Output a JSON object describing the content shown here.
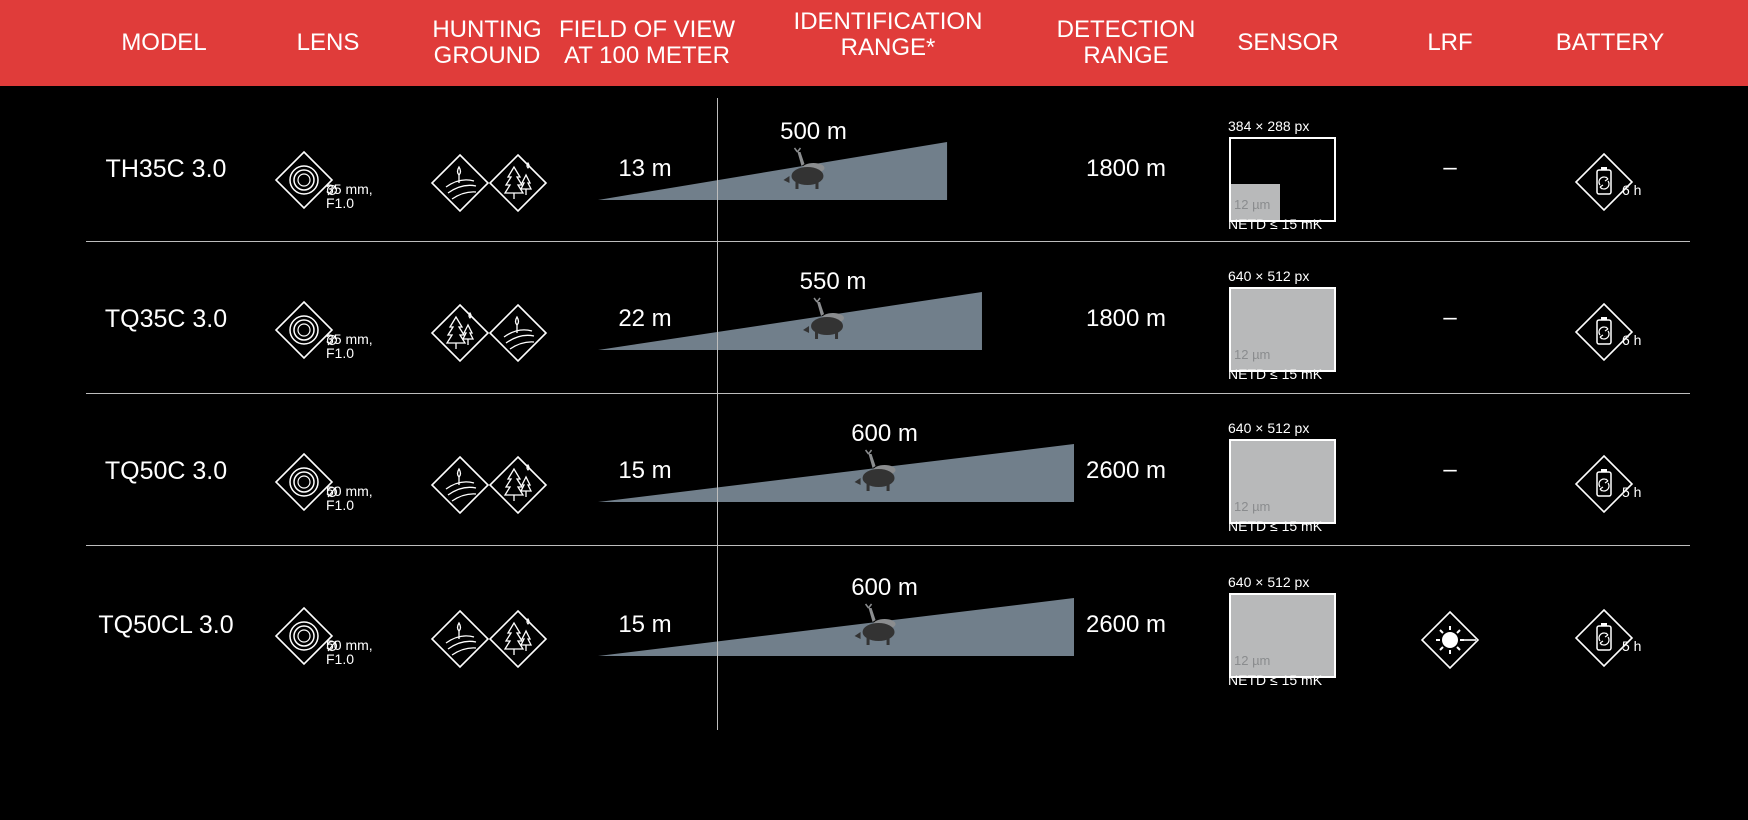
{
  "header": {
    "columns": [
      {
        "key": "model",
        "label": "MODEL"
      },
      {
        "key": "lens",
        "label": "LENS"
      },
      {
        "key": "hunting",
        "label": "HUNTING\nGROUND"
      },
      {
        "key": "fov",
        "label": "FIELD OF VIEW\nAT 100 METER"
      },
      {
        "key": "ident",
        "label": "IDENTIFICATION\nRANGE*"
      },
      {
        "key": "detect",
        "label": "DETECTION\nRANGE"
      },
      {
        "key": "sensor",
        "label": "SENSOR"
      },
      {
        "key": "lrf",
        "label": "LRF"
      },
      {
        "key": "battery",
        "label": "BATTERY"
      }
    ]
  },
  "colors": {
    "header_bg": "#e03c3a",
    "cone": "#717f8b",
    "sensor_fill": "#b8b9ba",
    "background": "#000000"
  },
  "rows": [
    {
      "model": "TH35C 3.0",
      "lens_line1": "35 mm,",
      "lens_line2": "F1.0",
      "hunting_icons": [
        "field-drop-icon",
        "forest-drop-icon"
      ],
      "fov": "13 m",
      "identification": "500 m",
      "detection": "1800 m",
      "sensor_resolution": "384 × 288 px",
      "sensor_pixel": "12 µm",
      "sensor_netd": "NETD ≤ 15 mK",
      "sensor_fill_fraction": 0.48,
      "lrf": "–",
      "lrf_icon": null,
      "battery": "6 h"
    },
    {
      "model": "TQ35C 3.0",
      "lens_line1": "35 mm,",
      "lens_line2": "F1.0",
      "hunting_icons": [
        "forest-drop-icon",
        "field-drop-icon"
      ],
      "fov": "22 m",
      "identification": "550 m",
      "detection": "1800 m",
      "sensor_resolution": "640 × 512 px",
      "sensor_pixel": "12 µm",
      "sensor_netd": "NETD ≤ 15 mK",
      "sensor_fill_fraction": 1.0,
      "lrf": "–",
      "lrf_icon": null,
      "battery": "6 h"
    },
    {
      "model": "TQ50C 3.0",
      "lens_line1": "50 mm,",
      "lens_line2": "F1.0",
      "hunting_icons": [
        "field-drop-icon",
        "forest-drop-icon"
      ],
      "fov": "15 m",
      "identification": "600 m",
      "detection": "2600 m",
      "sensor_resolution": "640 × 512 px",
      "sensor_pixel": "12 µm",
      "sensor_netd": "NETD ≤ 15 mK",
      "sensor_fill_fraction": 1.0,
      "lrf": "–",
      "lrf_icon": null,
      "battery": "5 h"
    },
    {
      "model": "TQ50CL 3.0",
      "lens_line1": "50 mm,",
      "lens_line2": "F1.0",
      "hunting_icons": [
        "field-drop-icon",
        "forest-drop-icon"
      ],
      "fov": "15 m",
      "identification": "600 m",
      "detection": "2600 m",
      "sensor_resolution": "640 × 512 px",
      "sensor_pixel": "12 µm",
      "sensor_netd": "NETD ≤ 15 mK",
      "sensor_fill_fraction": 1.0,
      "lrf": "",
      "lrf_icon": "laser-rangefinder-icon",
      "battery": "5 h"
    }
  ]
}
